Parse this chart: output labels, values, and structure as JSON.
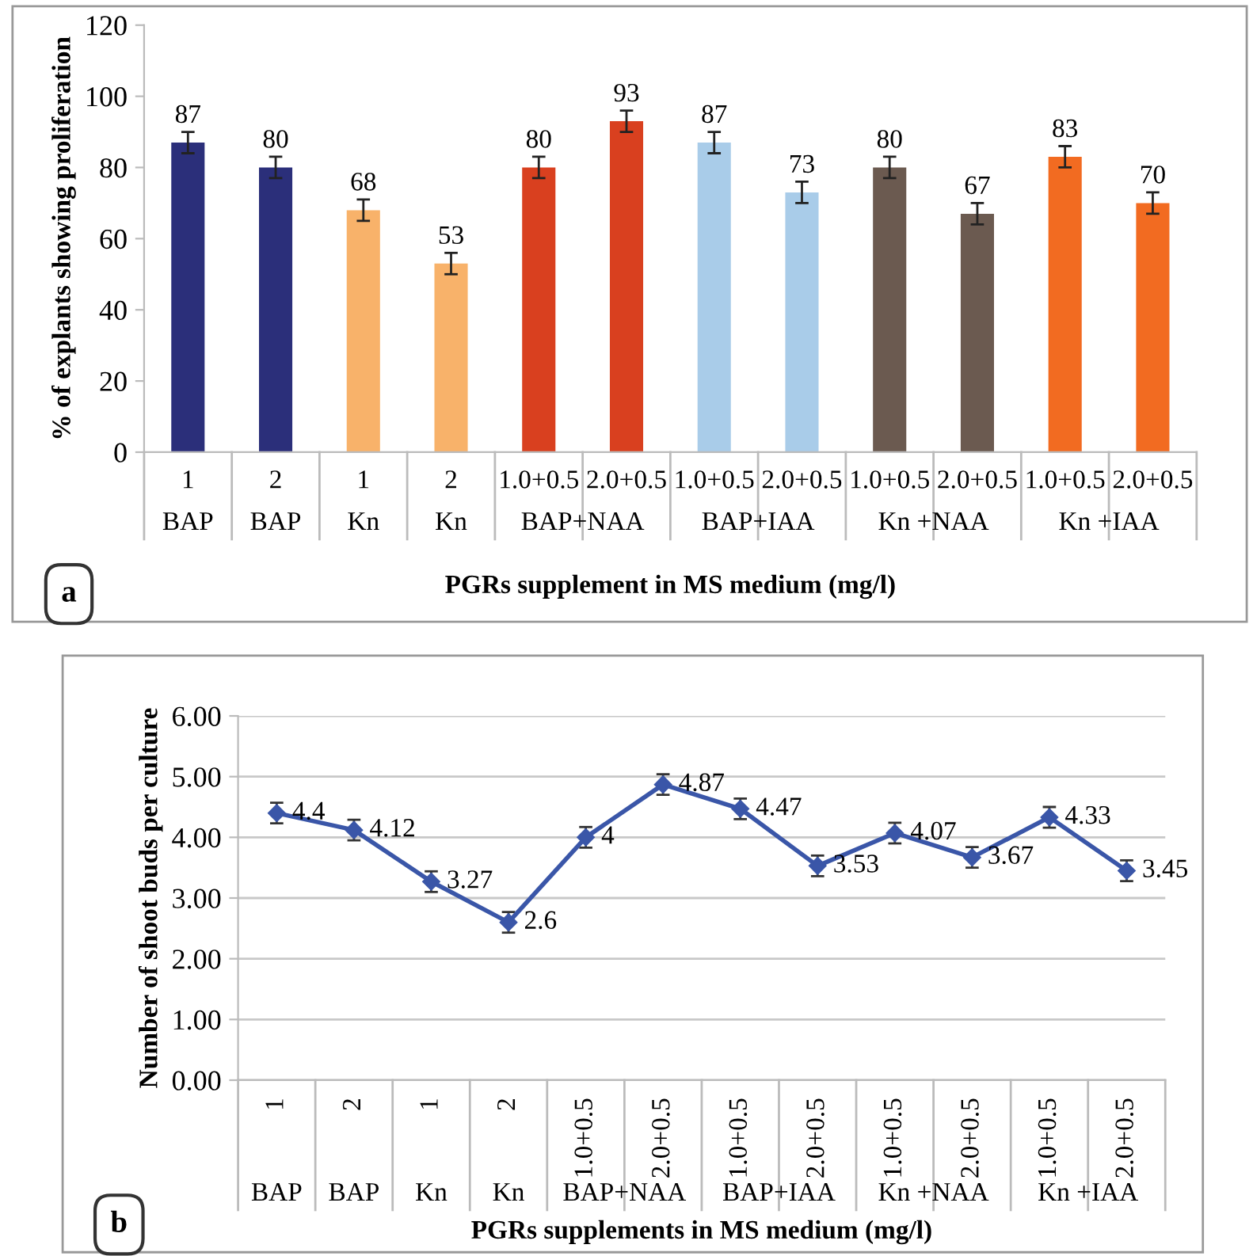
{
  "chart_data": [
    {
      "type": "bar",
      "ylabel": "% of explants showing proliferation",
      "xlabel": "PGRs supplement in MS medium (mg/l)",
      "categories": [
        "1",
        "2",
        "1",
        "2",
        "1.0+0.5",
        "2.0+0.5",
        "1.0+0.5",
        "2.0+0.5",
        "1.0+0.5",
        "2.0+0.5",
        "1.0+0.5",
        "2.0+0.5"
      ],
      "values": [
        87,
        80,
        68,
        53,
        80,
        93,
        87,
        73,
        80,
        67,
        83,
        70
      ],
      "errors": [
        3,
        3,
        3,
        3,
        3,
        3,
        3,
        3,
        3,
        3,
        3,
        3
      ],
      "colors": [
        "#2b2f7a",
        "#2b2f7a",
        "#f8b26a",
        "#f8b26a",
        "#d9401f",
        "#d9401f",
        "#a9cce9",
        "#a9cce9",
        "#6b5a50",
        "#6b5a50",
        "#f26b21",
        "#f26b21"
      ],
      "ylim": [
        0,
        120
      ],
      "yticks": [
        0,
        20,
        40,
        60,
        80,
        100,
        120
      ],
      "grid": false,
      "data_labels": true,
      "annotations": [
        "BAP",
        "BAP",
        "Kn",
        "Kn",
        "BAP+NAA",
        "BAP+IAA",
        "Kn +NAA",
        "Kn +IAA",
        "a"
      ]
    },
    {
      "type": "line",
      "ylabel": "Number of shoot buds per culture",
      "xlabel": "PGRs supplements in MS medium (mg/l)",
      "categories": [
        "1",
        "2",
        "1",
        "2",
        "1.0+0.5",
        "2.0+0.5",
        "1.0+0.5",
        "2.0+0.5",
        "1.0+0.5",
        "2.0+0.5",
        "1.0+0.5",
        "2.0+0.5"
      ],
      "series": [
        {
          "color": "#3a56a8",
          "values": [
            4.4,
            4.12,
            3.27,
            2.6,
            4,
            4.87,
            4.47,
            3.53,
            4.07,
            3.67,
            4.33,
            3.45
          ],
          "errors": [
            0.17,
            0.17,
            0.17,
            0.17,
            0.17,
            0.17,
            0.17,
            0.17,
            0.17,
            0.17,
            0.17,
            0.17
          ]
        }
      ],
      "marker": "diamond",
      "line_style": "solid",
      "ylim": [
        0,
        6
      ],
      "yticks": [
        {
          "value": 0,
          "label": "0.00"
        },
        {
          "value": 1,
          "label": "1.00"
        },
        {
          "value": 2,
          "label": "2.00"
        },
        {
          "value": 3,
          "label": "3.00"
        },
        {
          "value": 4,
          "label": "4.00"
        },
        {
          "value": 5,
          "label": "5.00"
        },
        {
          "value": 6,
          "label": "6.00"
        }
      ],
      "grid": "y",
      "data_labels": true,
      "annotations": [
        "BAP",
        "BAP",
        "Kn",
        "Kn",
        "BAP+NAA",
        "BAP+IAA",
        "Kn +NAA",
        "Kn +IAA",
        "b"
      ]
    }
  ]
}
